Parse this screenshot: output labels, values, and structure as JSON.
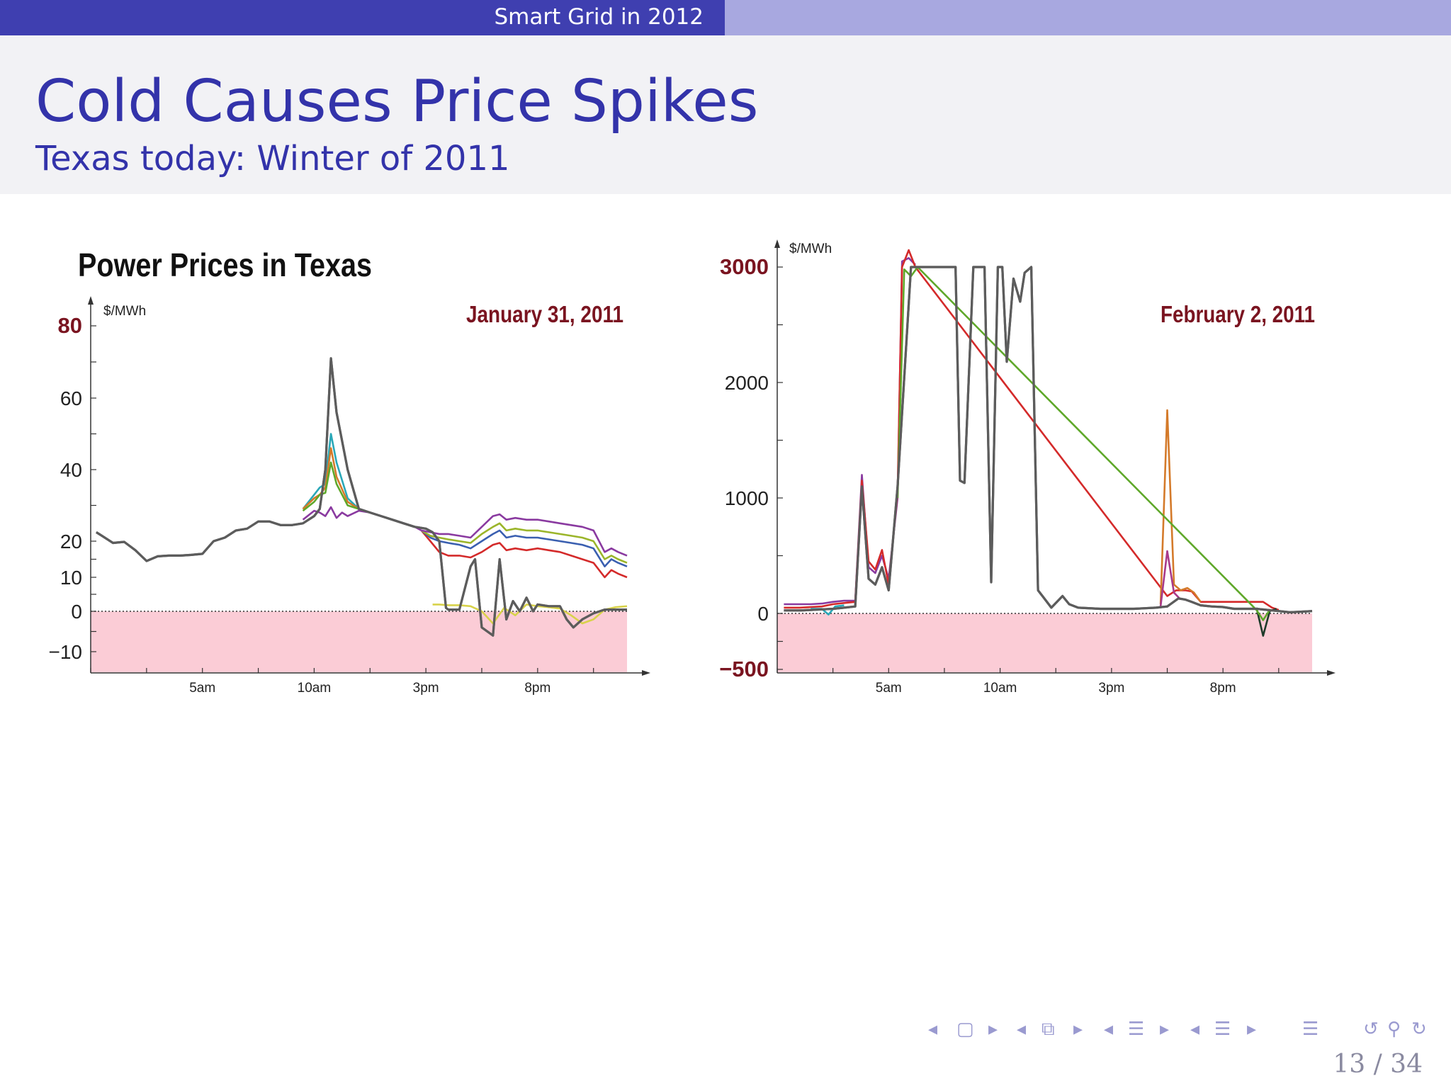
{
  "header": {
    "section": "Smart Grid in 2012",
    "title": "Cold Causes Price Spikes",
    "subtitle": "Texas today: Winter of 2011"
  },
  "colors": {
    "accent": "#3333aa",
    "negative_region": "#fbccd6",
    "date_label": "#7a1420",
    "main_series": "#5c5c5c"
  },
  "nav": {
    "icons": [
      "nav-prev-frame-icon",
      "nav-frame-icon",
      "nav-next-frame-icon",
      "nav-prev-slide-icon",
      "nav-slide-icon",
      "nav-next-slide-icon",
      "nav-prev-section-icon",
      "nav-section-icon",
      "nav-next-section-icon",
      "nav-prev-subsection-icon",
      "nav-subsection-icon",
      "nav-next-subsection-icon",
      "nav-toc-icon",
      "nav-back-icon",
      "nav-search-icon",
      "nav-forward-icon"
    ],
    "page": "13 / 34"
  },
  "chart_data": [
    {
      "type": "line",
      "title": "Power Prices in Texas",
      "date_label": "January 31, 2011",
      "ylabel": "$/MWh",
      "ylim": [
        -17,
        84
      ],
      "yticks": [
        {
          "value": -10,
          "label": "−10"
        },
        {
          "value": 0,
          "label": "0"
        },
        {
          "value": 10,
          "label": "10"
        },
        {
          "value": 20,
          "label": "20"
        },
        {
          "value": 40,
          "label": "40"
        },
        {
          "value": 60,
          "label": "60"
        },
        {
          "value": 80,
          "label": "80",
          "emphasis": true
        }
      ],
      "xlim": [
        0,
        24
      ],
      "xticks": [
        {
          "value": 5,
          "label": "5am"
        },
        {
          "value": 10,
          "label": "10am"
        },
        {
          "value": 15,
          "label": "3pm"
        },
        {
          "value": 20,
          "label": "8pm"
        }
      ],
      "negative_region": true,
      "series": [
        {
          "color": "#5c5c5c",
          "x": [
            0.25,
            0.5,
            1,
            1.5,
            2,
            2.5,
            3,
            3.5,
            4,
            4.5,
            5,
            5.5,
            6,
            6.5,
            7,
            7.5,
            8,
            8.5,
            9,
            9.5,
            10,
            10.25,
            10.5,
            10.75,
            11,
            11.5,
            12,
            12.5,
            13,
            13.5,
            14,
            14.5,
            15,
            15.3,
            15.6,
            15.9,
            16,
            16.5,
            17,
            17.2,
            17.5,
            18,
            18.3,
            18.6,
            18.9,
            19.2,
            19.5,
            19.8,
            20,
            20.5,
            21,
            21.3,
            21.6,
            22,
            22.5,
            23,
            23.5,
            24
          ],
          "y": [
            22.5,
            21.5,
            19.5,
            19.8,
            17.5,
            14.5,
            15.8,
            16,
            16,
            16.2,
            16.5,
            20,
            21,
            23,
            23.5,
            25.5,
            25.5,
            24.5,
            24.5,
            25,
            27,
            29,
            40,
            71,
            56,
            40,
            29,
            28,
            27,
            26,
            25,
            24,
            23.5,
            22.5,
            20,
            1,
            0.5,
            0.5,
            13,
            15,
            -4,
            -6,
            15,
            -2,
            3,
            0,
            4,
            0,
            2,
            1.5,
            1.5,
            -2,
            -4,
            -2,
            -0.5,
            0.5,
            0.5,
            0.5
          ]
        },
        {
          "color": "#d42a2a",
          "x": [
            14.8,
            15.2,
            15.6,
            16,
            16.5,
            17,
            17.5,
            18,
            18.3,
            18.6,
            19,
            19.5,
            20,
            20.5,
            21,
            21.5,
            22,
            22.5,
            23,
            23.3,
            23.6,
            24
          ],
          "y": [
            23,
            20,
            17,
            16,
            16,
            15.5,
            17,
            19,
            19.5,
            17.5,
            18,
            17.5,
            18,
            17.5,
            17,
            16,
            15,
            14,
            10,
            12,
            11,
            10
          ]
        },
        {
          "color": "#3a5fb0",
          "x": [
            14.8,
            15.2,
            15.6,
            16,
            16.5,
            17,
            17.5,
            18,
            18.3,
            18.6,
            19,
            19.5,
            20,
            20.5,
            21,
            21.5,
            22,
            22.5,
            23,
            23.3,
            23.6,
            24
          ],
          "y": [
            23,
            21,
            20,
            19.5,
            19,
            18,
            20,
            22,
            23,
            21,
            21.5,
            21,
            21,
            20.5,
            20,
            19.5,
            19,
            18,
            13,
            15,
            14,
            13
          ]
        },
        {
          "color": "#9bb52a",
          "x": [
            14.8,
            15.2,
            15.6,
            16,
            16.5,
            17,
            17.5,
            18,
            18.3,
            18.6,
            19,
            19.5,
            20,
            20.5,
            21,
            21.5,
            22,
            22.5,
            23,
            23.3,
            23.6,
            24
          ],
          "y": [
            23,
            21.5,
            21,
            20.5,
            20,
            19.5,
            22,
            24,
            25,
            23,
            23.5,
            23,
            23,
            22.5,
            22,
            21.5,
            21,
            20,
            15,
            16,
            15,
            14
          ]
        },
        {
          "color": "#8a3aa0",
          "x": [
            9.5,
            10,
            10.25,
            10.5,
            10.75,
            11,
            11.25,
            11.5,
            12,
            12.5,
            13,
            13.5,
            14,
            14.5,
            14.8,
            15.2,
            15.6,
            16,
            16.5,
            17,
            17.5,
            18,
            18.3,
            18.6,
            19,
            19.5,
            20,
            20.5,
            21,
            21.5,
            22,
            22.5,
            23,
            23.3,
            23.6,
            24
          ],
          "y": [
            26,
            28.5,
            28,
            27,
            29.5,
            26.5,
            28,
            27,
            28.5,
            28,
            27,
            26,
            25,
            24,
            23,
            22.5,
            22,
            22,
            21.5,
            21,
            24,
            27,
            27.5,
            26,
            26.5,
            26,
            26,
            25.5,
            25,
            24.5,
            24,
            23,
            17,
            18,
            17,
            16
          ]
        },
        {
          "color": "#d8d24a",
          "x": [
            15.3,
            15.6,
            16,
            16.5,
            17,
            17.5,
            18,
            18.5,
            19,
            19.5,
            20,
            20.5,
            21,
            21.5,
            22,
            22.5,
            23,
            23.5,
            24
          ],
          "y": [
            2,
            2,
            1.8,
            1.8,
            1.5,
            0,
            -3,
            1,
            -1,
            2,
            1.5,
            1.2,
            0.8,
            -1,
            -3,
            -2,
            0.5,
            1.2,
            1.5
          ]
        },
        {
          "color": "#2aa8b8",
          "x": [
            9.5,
            10,
            10.25,
            10.5,
            10.75,
            11,
            11.5,
            12
          ],
          "y": [
            29,
            33,
            35,
            36,
            50,
            42,
            32,
            29
          ]
        },
        {
          "color": "#d47a2a",
          "x": [
            9.5,
            10,
            10.25,
            10.5,
            10.75,
            11,
            11.5,
            12
          ],
          "y": [
            29,
            32,
            33,
            35,
            46,
            38,
            31,
            29
          ]
        },
        {
          "color": "#5fa82a",
          "x": [
            9.5,
            10,
            10.25,
            10.5,
            10.75,
            11,
            11.5,
            12
          ],
          "y": [
            28.5,
            31,
            33,
            33.5,
            42,
            36,
            30,
            29
          ]
        }
      ]
    },
    {
      "type": "line",
      "title": "",
      "date_label": "February 2, 2011",
      "ylabel": "$/MWh",
      "ylim": [
        -520,
        3220
      ],
      "yticks": [
        {
          "value": -500,
          "label": "−500",
          "emphasis": true
        },
        {
          "value": 0,
          "label": "0"
        },
        {
          "value": 1000,
          "label": "1000"
        },
        {
          "value": 2000,
          "label": "2000"
        },
        {
          "value": 3000,
          "label": "3000",
          "emphasis": true
        }
      ],
      "xlim": [
        0,
        24
      ],
      "xticks": [
        {
          "value": 5,
          "label": "5am"
        },
        {
          "value": 10,
          "label": "10am"
        },
        {
          "value": 15,
          "label": "3pm"
        },
        {
          "value": 20,
          "label": "8pm"
        }
      ],
      "negative_region": true,
      "series": [
        {
          "color": "#5c5c5c",
          "x": [
            0.3,
            1,
            1.5,
            2,
            2.5,
            3,
            3.5,
            3.8,
            4.1,
            4.4,
            4.7,
            5,
            5.4,
            6,
            6.5,
            7,
            7.5,
            8,
            8.2,
            8.4,
            8.8,
            9,
            9.3,
            9.6,
            9.9,
            10.1,
            10.3,
            10.6,
            10.9,
            11.1,
            11.4,
            11.7,
            11.9,
            12.3,
            12.8,
            13.1,
            13.5,
            14.5,
            15,
            15.5,
            16,
            16.5,
            17,
            17.5,
            18,
            18.3,
            18.6,
            19,
            19.5,
            20,
            20.5,
            21,
            21.5,
            22,
            22.5,
            23,
            23.5,
            24
          ],
          "y": [
            25,
            25,
            30,
            35,
            40,
            50,
            60,
            1100,
            300,
            250,
            400,
            200,
            1100,
            3000,
            3000,
            3000,
            3000,
            3000,
            1150,
            1130,
            3000,
            3000,
            3000,
            270,
            3000,
            3000,
            2180,
            2900,
            2700,
            2950,
            3000,
            200,
            150,
            50,
            150,
            80,
            50,
            40,
            40,
            40,
            40,
            45,
            50,
            60,
            130,
            120,
            100,
            70,
            60,
            55,
            40,
            40,
            40,
            30,
            20,
            10,
            15,
            20
          ]
        },
        {
          "color": "#8a3aa0",
          "x": [
            0.3,
            1,
            1.5,
            2,
            2.5,
            3,
            3.5,
            3.8,
            4.1,
            4.4,
            4.7,
            5,
            5.4,
            5.6,
            5.9,
            6.2
          ],
          "y": [
            80,
            80,
            80,
            85,
            100,
            110,
            110,
            1200,
            400,
            350,
            500,
            300,
            1000,
            3050,
            3080,
            3020
          ]
        },
        {
          "color": "#d42a2a",
          "x": [
            0.3,
            1,
            1.5,
            2,
            2.5,
            3,
            3.5,
            3.8,
            4.1,
            4.4,
            4.7,
            5,
            5.4,
            5.6,
            5.9,
            6.2,
            17.5,
            17.9,
            18.3,
            18.6,
            19,
            21.8,
            22.2,
            22.5
          ],
          "y": [
            50,
            50,
            55,
            60,
            80,
            90,
            100,
            1150,
            450,
            380,
            550,
            250,
            1050,
            3000,
            3150,
            3000,
            150,
            200,
            200,
            190,
            100,
            100,
            50,
            30
          ]
        },
        {
          "color": "#d47a2a",
          "x": [
            17.2,
            17.5,
            17.8,
            18.1,
            18.4,
            18.7,
            19
          ],
          "y": [
            80,
            1760,
            250,
            200,
            220,
            180,
            100
          ]
        },
        {
          "color": "#a83a8a",
          "x": [
            17.2,
            17.5,
            17.8,
            18.1
          ],
          "y": [
            60,
            540,
            180,
            120
          ]
        },
        {
          "color": "#1e3a2a",
          "x": [
            21.5,
            21.8,
            22.1,
            22.4
          ],
          "y": [
            50,
            -200,
            20,
            40
          ]
        },
        {
          "color": "#2aa8b8",
          "x": [
            1.5,
            2,
            2.3,
            2.6,
            3
          ],
          "y": [
            40,
            40,
            -10,
            60,
            70
          ]
        },
        {
          "color": "#5fa82a",
          "x": [
            5.4,
            5.7,
            6,
            6.3,
            21.5,
            21.8,
            22.1
          ],
          "y": [
            1000,
            2980,
            2920,
            3000,
            30,
            -60,
            30
          ]
        }
      ]
    }
  ]
}
